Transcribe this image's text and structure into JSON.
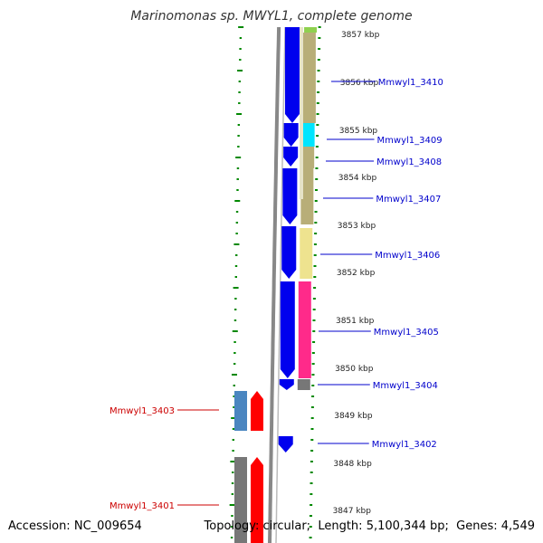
{
  "title": "Marinomonas sp. MWYL1, complete genome",
  "footer": {
    "accession_label": "Accession:",
    "accession": "NC_009654",
    "topology_label": "Topology:",
    "topology": "circular",
    "length_label": "Length:",
    "length": "5,100,344 bp",
    "genes_label": "Genes:",
    "genes": "4,549"
  },
  "scale_labels": [
    "3857 kbp",
    "3856 kbp",
    "3855 kbp",
    "3854 kbp",
    "3853 kbp",
    "3852 kbp",
    "3851 kbp",
    "3850 kbp",
    "3849 kbp",
    "3848 kbp",
    "3847 kbp"
  ],
  "genes_forward": [
    {
      "label": "Mmwyl1_3410",
      "color": "#0000ee"
    },
    {
      "label": "Mmwyl1_3409",
      "color": "#0000ee"
    },
    {
      "label": "Mmwyl1_3408",
      "color": "#0000ee"
    },
    {
      "label": "Mmwyl1_3407",
      "color": "#0000ee"
    },
    {
      "label": "Mmwyl1_3406",
      "color": "#0000ee"
    },
    {
      "label": "Mmwyl1_3405",
      "color": "#0000ee"
    },
    {
      "label": "Mmwyl1_3404",
      "color": "#0000ee"
    },
    {
      "label": "Mmwyl1_3402",
      "color": "#0000ee"
    }
  ],
  "genes_reverse": [
    {
      "label": "Mmwyl1_3403",
      "color": "#cc0000"
    },
    {
      "label": "Mmwyl1_3401",
      "color": "#cc0000"
    }
  ],
  "colors": {
    "forward_label": "#0000cc",
    "reverse_label": "#cc0000",
    "gene_forward": "#0000ee",
    "gene_reverse": "#ff0000",
    "tick": "#008800",
    "backbone": "#888888",
    "cog_olive": "#b8ae78",
    "cog_cyan": "#00e5ff",
    "cog_lightyellow": "#eee38f",
    "cog_pink": "#ff2a8a",
    "cog_gray": "#777777",
    "cog_steelblue": "#4a86c0",
    "cog_green": "#8fd14f"
  }
}
